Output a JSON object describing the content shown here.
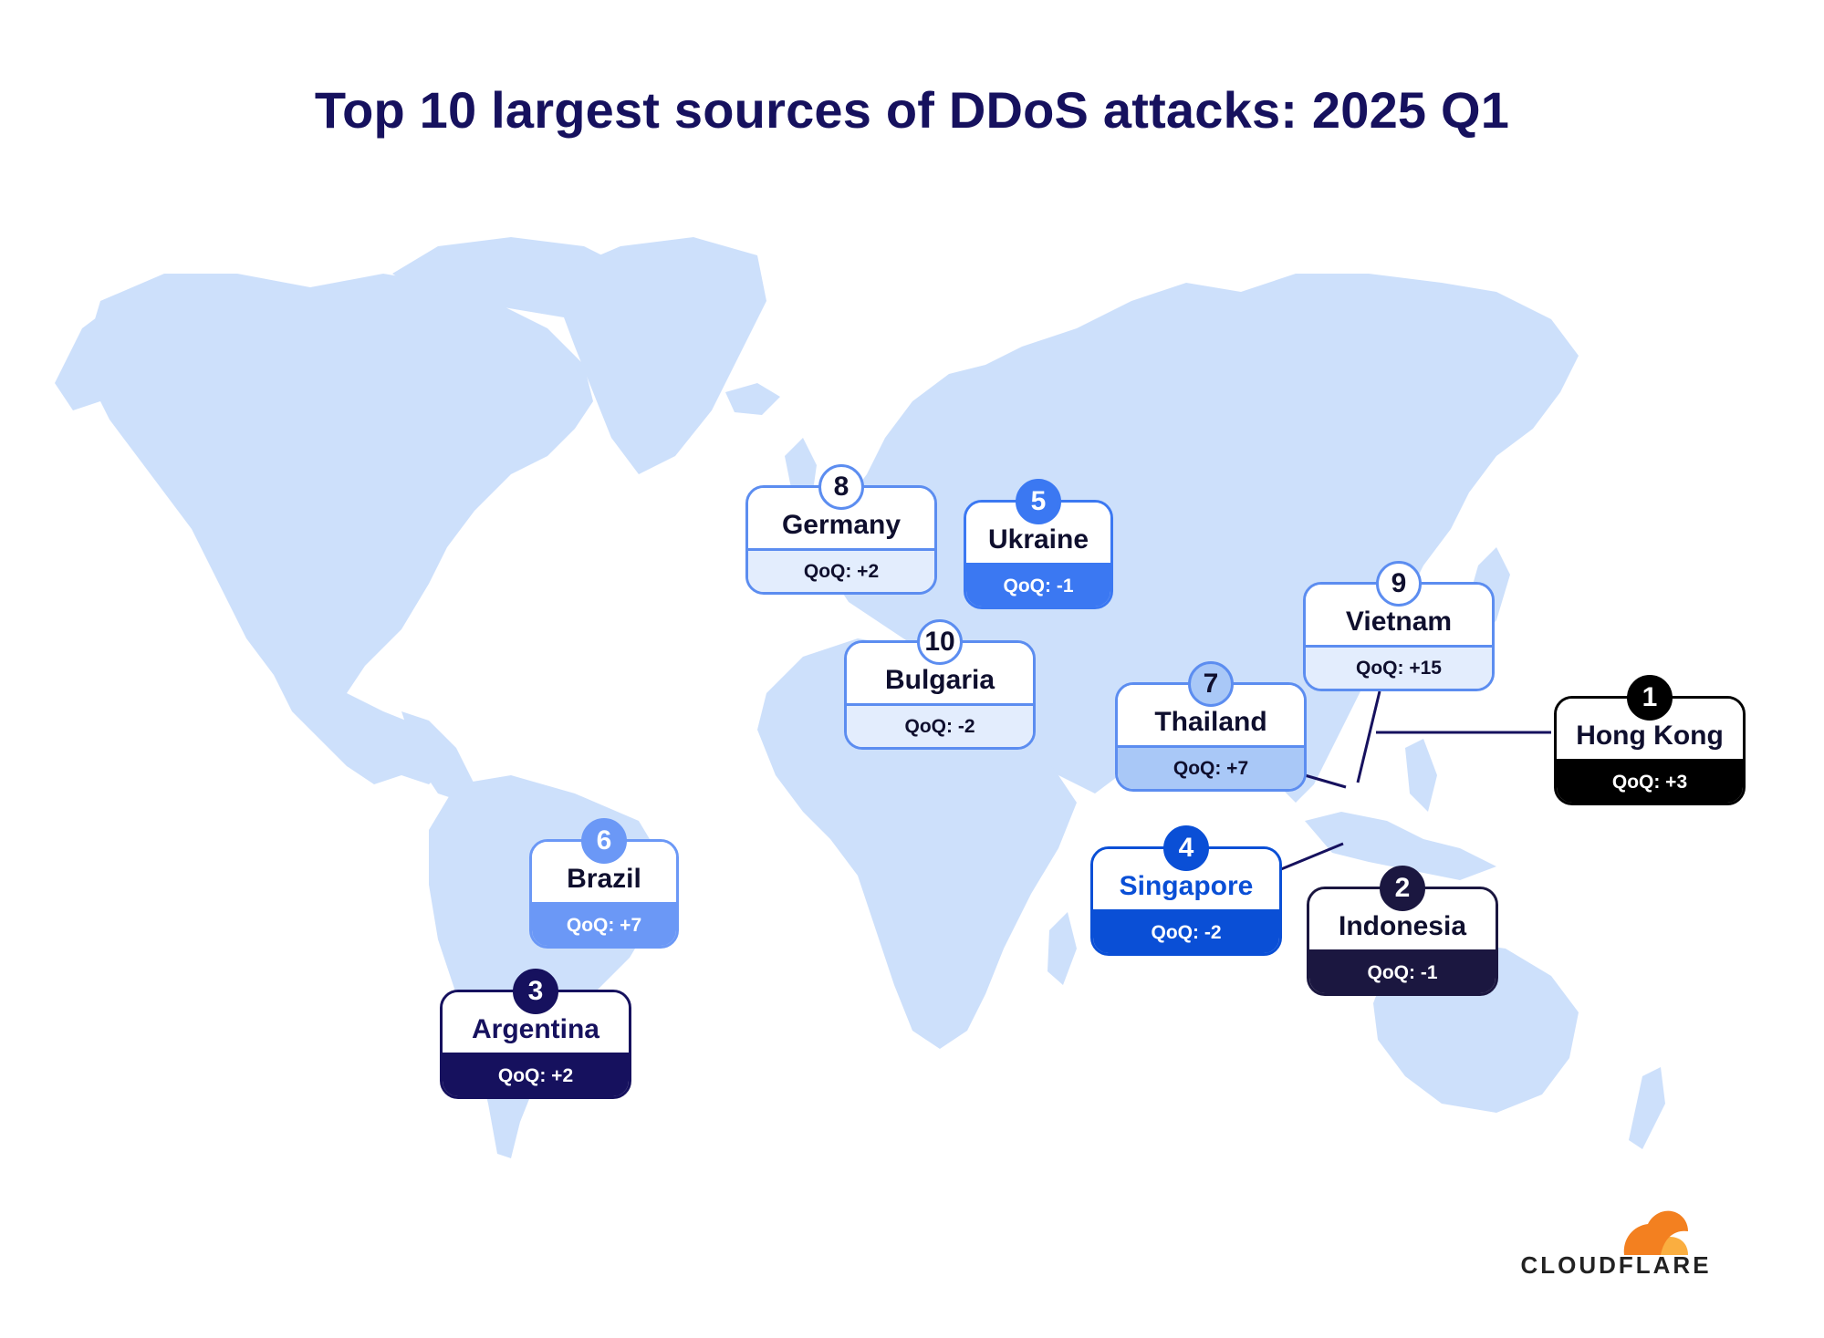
{
  "title": "Top 10 largest sources of DDoS attacks: 2025 Q1",
  "countries": [
    {
      "rank": "1",
      "name": "Hong Kong",
      "qoq": "QoQ: +3",
      "theme": "black"
    },
    {
      "rank": "2",
      "name": "Indonesia",
      "qoq": "QoQ: -1",
      "theme": "darknavy"
    },
    {
      "rank": "3",
      "name": "Argentina",
      "qoq": "QoQ: +2",
      "theme": "navy"
    },
    {
      "rank": "4",
      "name": "Singapore",
      "qoq": "QoQ: -2",
      "theme": "royal"
    },
    {
      "rank": "5",
      "name": "Ukraine",
      "qoq": "QoQ: -1",
      "theme": "blue"
    },
    {
      "rank": "6",
      "name": "Brazil",
      "qoq": "QoQ: +7",
      "theme": "midblue"
    },
    {
      "rank": "7",
      "name": "Thailand",
      "qoq": "QoQ: +7",
      "theme": "light"
    },
    {
      "rank": "8",
      "name": "Germany",
      "qoq": "QoQ: +2",
      "theme": "pale"
    },
    {
      "rank": "9",
      "name": "Vietnam",
      "qoq": "QoQ: +15",
      "theme": "pale"
    },
    {
      "rank": "10",
      "name": "Bulgaria",
      "qoq": "QoQ: -2",
      "theme": "pale"
    }
  ],
  "logo": {
    "text": "CLOUDFLARE"
  },
  "colors": {
    "land": "#cde0fb",
    "title": "#16115e",
    "black": "#000000",
    "darknavy": "#1b1740",
    "navy": "#16115e",
    "royal": "#0a4fd6",
    "blue": "#3b78f2",
    "midblue": "#6b98f6",
    "light": "#a9c8f7",
    "pale": "#e3edfd",
    "logo_orange": "#f38020",
    "logo_light_orange": "#faae40"
  }
}
